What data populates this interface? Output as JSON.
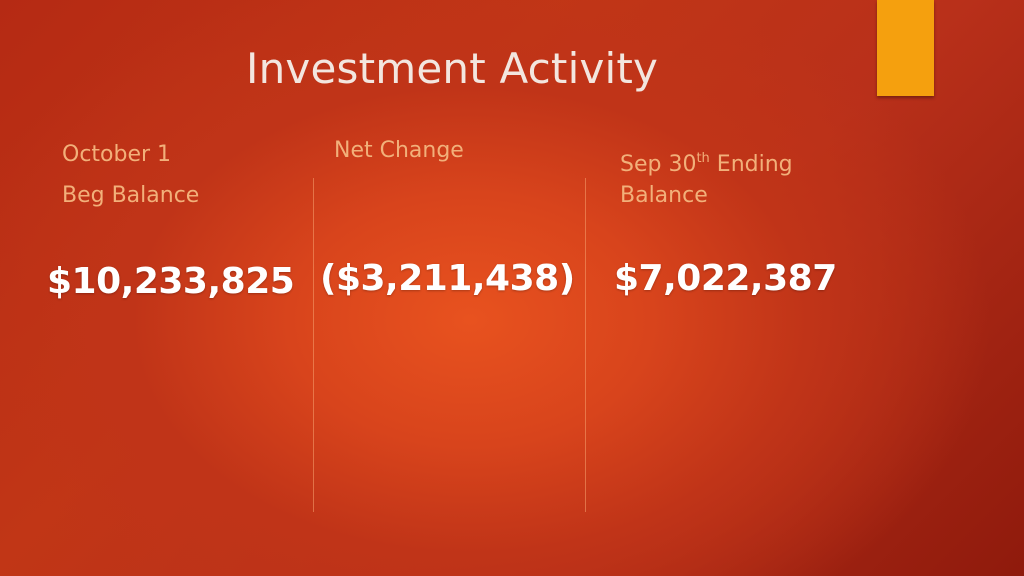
{
  "slide": {
    "title": "Investment Activity",
    "accent_color": "#f5a00e"
  },
  "columns": [
    {
      "label_line1": "October 1",
      "label_line2": "Beg Balance",
      "amount": "$10,233,825"
    },
    {
      "label_line1": "Net Change",
      "amount": "($3,211,438)"
    },
    {
      "label_prefix": "Sep 30",
      "label_superscript": "th",
      "label_suffix": " Ending",
      "label_line2": "Balance",
      "amount": "$7,022,387"
    }
  ]
}
